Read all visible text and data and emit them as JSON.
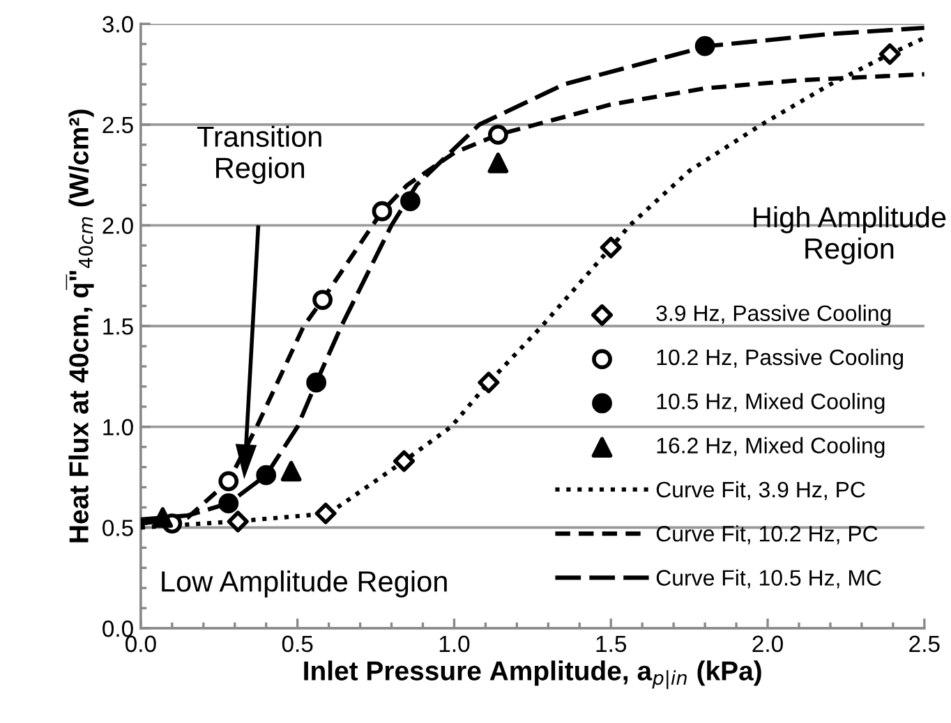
{
  "chart_data": {
    "type": "scatter",
    "xlabel": "Inlet Pressure Amplitude, a$_{p|in}$ (kPa)",
    "ylabel": "Heat Flux at 40cm, q̅\"$_{40cm}$ (W/cm²)",
    "xlim": [
      0,
      2.5
    ],
    "ylim": [
      0,
      3.0
    ],
    "xticks": [
      {
        "value": 0,
        "label": "0.0"
      },
      0.5,
      {
        "value": 1,
        "label": "1.0"
      },
      1.5,
      {
        "value": 2,
        "label": "2.0"
      },
      2.5
    ],
    "yticks": [
      {
        "value": 0,
        "label": "0.0"
      },
      0.5,
      {
        "value": 1,
        "label": "1.0"
      },
      1.5,
      {
        "value": 2,
        "label": "2.0"
      },
      2.5,
      {
        "value": 3,
        "label": "3.0"
      }
    ],
    "grid": "y",
    "legend": "right",
    "series": [
      {
        "name": "3.9 Hz, Passive Cooling",
        "marker": "diamond",
        "color": "#ffffff",
        "x": [
          0.31,
          0.59,
          0.84,
          1.11,
          1.5,
          2.39
        ],
        "values": [
          0.53,
          0.57,
          0.83,
          1.22,
          1.89,
          2.85
        ]
      },
      {
        "name": "10.2 Hz, Passive Cooling",
        "marker": "circle",
        "color": "#ffffff",
        "x": [
          0.1,
          0.28,
          0.58,
          0.77,
          1.14
        ],
        "values": [
          0.52,
          0.73,
          1.63,
          2.07,
          2.45
        ]
      },
      {
        "name": "10.5 Hz, Mixed Cooling",
        "marker": "circle",
        "color": "#000000",
        "x": [
          0.28,
          0.4,
          0.56,
          0.86,
          1.8
        ],
        "values": [
          0.62,
          0.76,
          1.22,
          2.12,
          2.89
        ]
      },
      {
        "name": "16.2 Hz, Mixed Cooling",
        "marker": "triangle",
        "color": "#000000",
        "x": [
          0.07,
          0.48,
          1.14
        ],
        "values": [
          0.55,
          0.78,
          2.31
        ]
      },
      {
        "name": "Curve Fit, 3.9 Hz, PC",
        "type": "line",
        "line_style": "dotted",
        "color": "#000000",
        "x": [
          0,
          0.3,
          0.6,
          0.84,
          0.99,
          1.11,
          1.28,
          1.5,
          1.56,
          1.75,
          1.98,
          2.2,
          2.39,
          2.5
        ],
        "values": [
          0.5,
          0.53,
          0.57,
          0.83,
          1.0,
          1.22,
          1.5,
          1.89,
          2.0,
          2.27,
          2.5,
          2.7,
          2.85,
          2.93
        ]
      },
      {
        "name": "Curve Fit, 10.2 Hz, PC",
        "type": "line",
        "line_style": "dashed",
        "color": "#000000",
        "x": [
          0,
          0.15,
          0.28,
          0.37,
          0.52,
          0.58,
          0.77,
          0.85,
          1.0,
          1.14,
          1.5,
          1.8,
          2.1,
          2.5
        ],
        "values": [
          0.52,
          0.55,
          0.73,
          1.0,
          1.5,
          1.63,
          2.07,
          2.2,
          2.36,
          2.45,
          2.6,
          2.68,
          2.72,
          2.75
        ]
      },
      {
        "name": "Curve Fit, 10.5 Hz, MC",
        "type": "line",
        "line_style": "dashed",
        "color": "#000000",
        "x": [
          0,
          0.15,
          0.28,
          0.4,
          0.5,
          0.56,
          0.64,
          0.8,
          0.88,
          1.08,
          1.35,
          1.81,
          2.2,
          2.5
        ],
        "values": [
          0.54,
          0.56,
          0.62,
          0.76,
          1.0,
          1.22,
          1.5,
          2.0,
          2.2,
          2.5,
          2.7,
          2.89,
          2.95,
          2.98
        ]
      }
    ],
    "annotations": [
      "Transition\nRegion",
      "High Amplitude\nRegion",
      "Low Amplitude Region"
    ]
  }
}
